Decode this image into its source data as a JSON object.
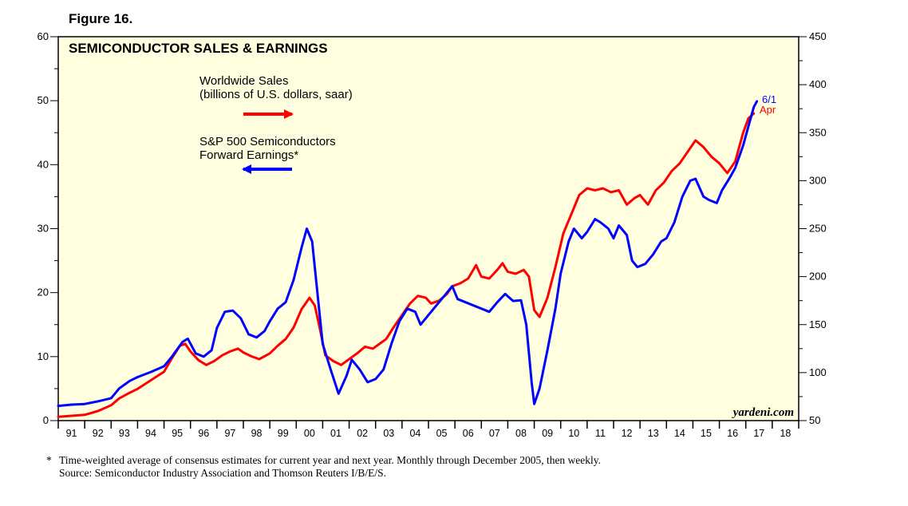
{
  "figure_label": "Figure 16.",
  "footnote": {
    "marker": "*",
    "note": "Time-weighted average of consensus estimates for current year and next year. Monthly through December 2005, then weekly.",
    "source": "Source:  Semiconductor Industry Association and Thomson Reuters I/B/E/S."
  },
  "chart_data": {
    "type": "line",
    "title": "SEMICONDUCTOR SALES & EARNINGS",
    "watermark": "yardeni.com",
    "legend": [
      {
        "label_lines": [
          "Worldwide Sales",
          "(billions of U.S. dollars, saar)"
        ],
        "color": "#ff0000",
        "axis": "right",
        "arrow": "right"
      },
      {
        "label_lines": [
          "S&P 500 Semiconductors",
          "Forward Earnings*"
        ],
        "color": "#0000ff",
        "axis": "left",
        "arrow": "left"
      }
    ],
    "x_axis": {
      "range": [
        1991.0,
        2019.0
      ],
      "tick_labels": [
        "91",
        "92",
        "93",
        "94",
        "95",
        "96",
        "97",
        "98",
        "99",
        "00",
        "01",
        "02",
        "03",
        "04",
        "05",
        "06",
        "07",
        "08",
        "09",
        "10",
        "11",
        "12",
        "13",
        "14",
        "15",
        "16",
        "17",
        "18"
      ]
    },
    "left_axis": {
      "range": [
        0,
        60
      ],
      "ticks": [
        0,
        10,
        20,
        30,
        40,
        50,
        60
      ],
      "minor_step": 5
    },
    "right_axis": {
      "range": [
        50,
        450
      ],
      "ticks": [
        50,
        100,
        150,
        200,
        250,
        300,
        350,
        400,
        450
      ],
      "minor_step": 25
    },
    "end_labels": [
      {
        "text": "6/1",
        "color": "#0000ff"
      },
      {
        "text": "Apr",
        "color": "#ff0000"
      }
    ],
    "series": [
      {
        "name": "S&P 500 Semiconductors Forward Earnings",
        "color": "#0000ff",
        "axis": "left",
        "points": [
          [
            1991.0,
            2.3
          ],
          [
            1991.5,
            2.5
          ],
          [
            1992.0,
            2.6
          ],
          [
            1992.5,
            3.0
          ],
          [
            1993.0,
            3.5
          ],
          [
            1993.3,
            5.0
          ],
          [
            1993.7,
            6.2
          ],
          [
            1994.0,
            6.8
          ],
          [
            1994.5,
            7.6
          ],
          [
            1995.0,
            8.5
          ],
          [
            1995.3,
            10.0
          ],
          [
            1995.7,
            12.3
          ],
          [
            1995.9,
            12.8
          ],
          [
            1996.2,
            10.5
          ],
          [
            1996.5,
            10.0
          ],
          [
            1996.8,
            11.0
          ],
          [
            1997.0,
            14.5
          ],
          [
            1997.3,
            17.0
          ],
          [
            1997.6,
            17.2
          ],
          [
            1997.9,
            16.0
          ],
          [
            1998.2,
            13.5
          ],
          [
            1998.5,
            13.0
          ],
          [
            1998.8,
            14.0
          ],
          [
            1999.0,
            15.5
          ],
          [
            1999.3,
            17.5
          ],
          [
            1999.6,
            18.5
          ],
          [
            1999.9,
            22.0
          ],
          [
            2000.2,
            27.0
          ],
          [
            2000.4,
            30.0
          ],
          [
            2000.6,
            28.0
          ],
          [
            2000.8,
            20.0
          ],
          [
            2001.0,
            12.0
          ],
          [
            2001.3,
            8.0
          ],
          [
            2001.6,
            4.2
          ],
          [
            2001.9,
            7.0
          ],
          [
            2002.1,
            9.5
          ],
          [
            2002.4,
            8.0
          ],
          [
            2002.7,
            6.0
          ],
          [
            2003.0,
            6.5
          ],
          [
            2003.3,
            8.0
          ],
          [
            2003.6,
            12.0
          ],
          [
            2003.9,
            15.5
          ],
          [
            2004.2,
            17.5
          ],
          [
            2004.5,
            17.0
          ],
          [
            2004.7,
            15.0
          ],
          [
            2005.0,
            16.5
          ],
          [
            2005.3,
            18.0
          ],
          [
            2005.6,
            19.5
          ],
          [
            2005.9,
            21.0
          ],
          [
            2006.1,
            19.0
          ],
          [
            2006.4,
            18.5
          ],
          [
            2006.7,
            18.0
          ],
          [
            2007.0,
            17.5
          ],
          [
            2007.3,
            17.0
          ],
          [
            2007.6,
            18.5
          ],
          [
            2007.9,
            19.8
          ],
          [
            2008.2,
            18.7
          ],
          [
            2008.5,
            18.8
          ],
          [
            2008.7,
            15.0
          ],
          [
            2008.9,
            6.0
          ],
          [
            2009.0,
            2.6
          ],
          [
            2009.2,
            5.0
          ],
          [
            2009.5,
            11.0
          ],
          [
            2009.8,
            17.5
          ],
          [
            2010.0,
            23.0
          ],
          [
            2010.3,
            28.0
          ],
          [
            2010.5,
            30.0
          ],
          [
            2010.8,
            28.5
          ],
          [
            2011.0,
            29.5
          ],
          [
            2011.3,
            31.5
          ],
          [
            2011.5,
            31.0
          ],
          [
            2011.8,
            30.0
          ],
          [
            2012.0,
            28.5
          ],
          [
            2012.2,
            30.5
          ],
          [
            2012.5,
            29.0
          ],
          [
            2012.7,
            25.0
          ],
          [
            2012.9,
            24.0
          ],
          [
            2013.2,
            24.5
          ],
          [
            2013.5,
            26.0
          ],
          [
            2013.8,
            28.0
          ],
          [
            2014.0,
            28.5
          ],
          [
            2014.3,
            31.0
          ],
          [
            2014.6,
            35.0
          ],
          [
            2014.9,
            37.5
          ],
          [
            2015.1,
            37.8
          ],
          [
            2015.4,
            35.0
          ],
          [
            2015.6,
            34.5
          ],
          [
            2015.9,
            34.0
          ],
          [
            2016.1,
            36.0
          ],
          [
            2016.4,
            38.0
          ],
          [
            2016.6,
            39.5
          ],
          [
            2016.9,
            43.0
          ],
          [
            2017.1,
            46.0
          ],
          [
            2017.3,
            49.0
          ],
          [
            2017.42,
            49.9
          ]
        ]
      },
      {
        "name": "Worldwide Sales",
        "color": "#ff0000",
        "axis": "right",
        "points": [
          [
            1991.0,
            54
          ],
          [
            1991.5,
            55
          ],
          [
            1992.0,
            56
          ],
          [
            1992.5,
            60
          ],
          [
            1993.0,
            66
          ],
          [
            1993.3,
            73
          ],
          [
            1993.7,
            79
          ],
          [
            1994.0,
            83
          ],
          [
            1994.5,
            92
          ],
          [
            1995.0,
            101
          ],
          [
            1995.3,
            115
          ],
          [
            1995.6,
            128
          ],
          [
            1995.8,
            130
          ],
          [
            1996.0,
            122
          ],
          [
            1996.3,
            113
          ],
          [
            1996.6,
            108
          ],
          [
            1996.9,
            112
          ],
          [
            1997.2,
            118
          ],
          [
            1997.5,
            122
          ],
          [
            1997.8,
            125
          ],
          [
            1998.0,
            121
          ],
          [
            1998.3,
            117
          ],
          [
            1998.6,
            114
          ],
          [
            1999.0,
            120
          ],
          [
            1999.3,
            128
          ],
          [
            1999.6,
            135
          ],
          [
            1999.9,
            147
          ],
          [
            2000.2,
            166
          ],
          [
            2000.5,
            178
          ],
          [
            2000.7,
            170
          ],
          [
            2000.9,
            145
          ],
          [
            2001.1,
            118
          ],
          [
            2001.4,
            112
          ],
          [
            2001.7,
            108
          ],
          [
            2002.0,
            114
          ],
          [
            2002.3,
            120
          ],
          [
            2002.6,
            127
          ],
          [
            2002.9,
            125
          ],
          [
            2003.1,
            129
          ],
          [
            2003.4,
            135
          ],
          [
            2003.7,
            148
          ],
          [
            2004.0,
            160
          ],
          [
            2004.3,
            172
          ],
          [
            2004.6,
            180
          ],
          [
            2004.9,
            178
          ],
          [
            2005.1,
            172
          ],
          [
            2005.4,
            175
          ],
          [
            2005.7,
            182
          ],
          [
            2005.9,
            190
          ],
          [
            2006.2,
            193
          ],
          [
            2006.5,
            198
          ],
          [
            2006.8,
            212
          ],
          [
            2007.0,
            200
          ],
          [
            2007.3,
            198
          ],
          [
            2007.6,
            207
          ],
          [
            2007.8,
            214
          ],
          [
            2008.0,
            205
          ],
          [
            2008.3,
            203
          ],
          [
            2008.6,
            207
          ],
          [
            2008.8,
            200
          ],
          [
            2009.0,
            165
          ],
          [
            2009.2,
            158
          ],
          [
            2009.5,
            178
          ],
          [
            2009.8,
            210
          ],
          [
            2010.1,
            245
          ],
          [
            2010.4,
            265
          ],
          [
            2010.7,
            285
          ],
          [
            2011.0,
            292
          ],
          [
            2011.3,
            290
          ],
          [
            2011.6,
            292
          ],
          [
            2011.9,
            288
          ],
          [
            2012.2,
            290
          ],
          [
            2012.5,
            275
          ],
          [
            2012.8,
            282
          ],
          [
            2013.0,
            285
          ],
          [
            2013.3,
            275
          ],
          [
            2013.6,
            290
          ],
          [
            2013.9,
            298
          ],
          [
            2014.2,
            310
          ],
          [
            2014.5,
            318
          ],
          [
            2014.8,
            330
          ],
          [
            2015.1,
            342
          ],
          [
            2015.4,
            335
          ],
          [
            2015.7,
            325
          ],
          [
            2016.0,
            318
          ],
          [
            2016.3,
            308
          ],
          [
            2016.6,
            320
          ],
          [
            2016.9,
            350
          ],
          [
            2017.1,
            365
          ],
          [
            2017.3,
            370
          ]
        ]
      }
    ]
  }
}
